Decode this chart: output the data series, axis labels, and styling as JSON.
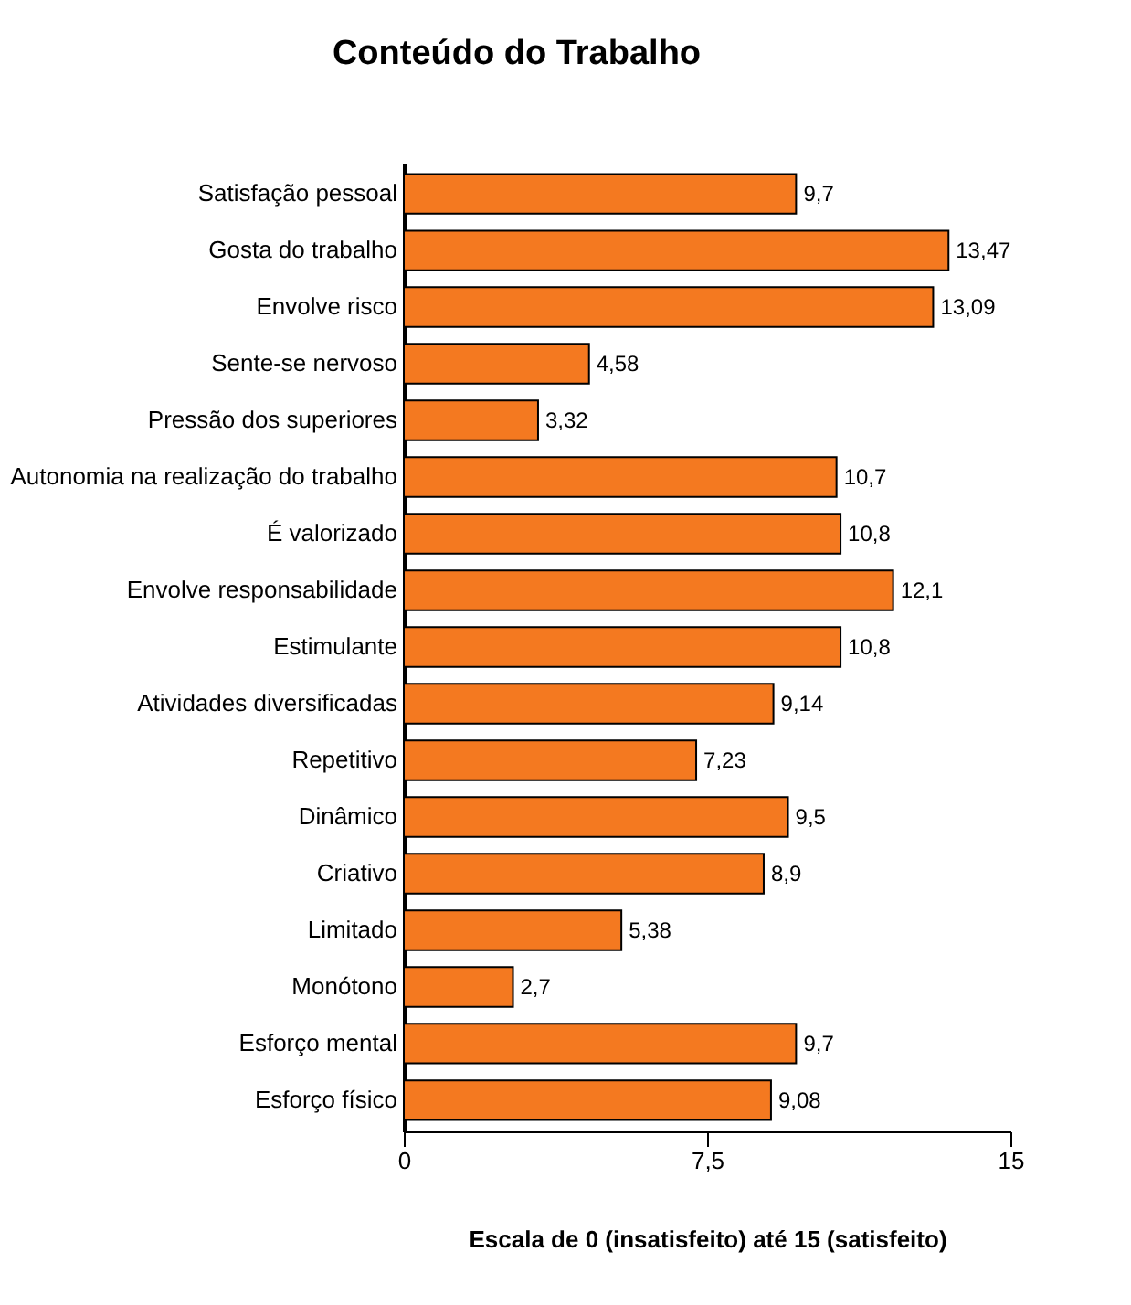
{
  "chart_data": {
    "type": "bar",
    "orientation": "horizontal",
    "title": "Conteúdo do Trabalho",
    "xlabel": "Escala de 0 (insatisfeito) até 15 (satisfeito)",
    "categories": [
      "Satisfação pessoal",
      "Gosta do trabalho",
      "Envolve risco",
      "Sente-se nervoso",
      "Pressão dos superiores",
      "Autonomia na realização do trabalho",
      "É valorizado",
      "Envolve responsabilidade",
      "Estimulante",
      "Atividades diversificadas",
      "Repetitivo",
      "Dinâmico",
      "Criativo",
      "Limitado",
      "Monótono",
      "Esforço mental",
      "Esforço físico"
    ],
    "values": [
      9.7,
      13.47,
      13.09,
      4.58,
      3.32,
      10.7,
      10.8,
      12.1,
      10.8,
      9.14,
      7.23,
      9.5,
      8.9,
      5.38,
      2.7,
      9.7,
      9.08
    ],
    "value_labels": [
      "9,7",
      "13,47",
      "13,09",
      "4,58",
      "3,32",
      "10,7",
      "10,8",
      "12,1",
      "10,8",
      "9,14",
      "7,23",
      "9,5",
      "8,9",
      "5,38",
      "2,7",
      "9,7",
      "9,08"
    ],
    "color": "#f47920",
    "xlim": [
      0,
      15
    ],
    "xticks": [
      0,
      {
        "value": 7.5,
        "label": "7,5"
      },
      15
    ],
    "grid": false
  }
}
